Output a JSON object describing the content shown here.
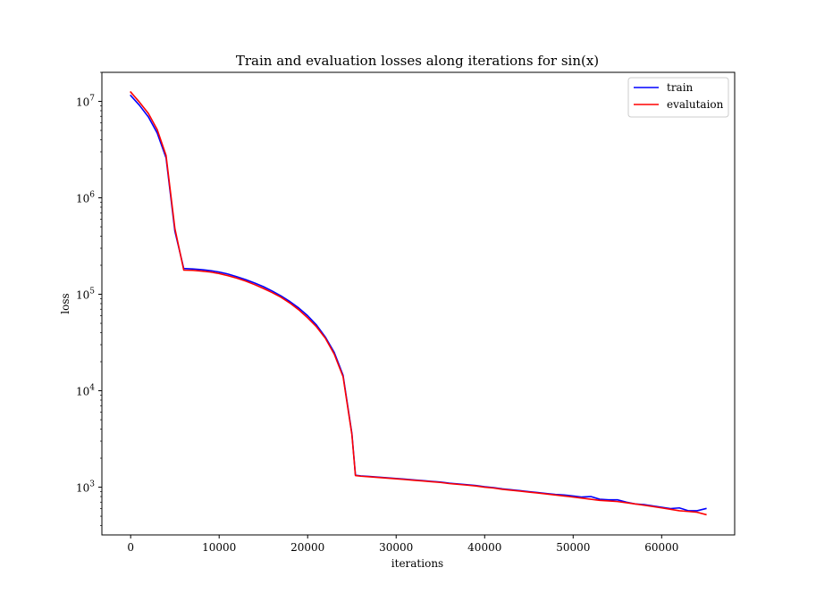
{
  "chart_data": {
    "type": "line",
    "title": "Train and evaluation losses along iterations for sin(x)",
    "xlabel": "iterations",
    "ylabel": "loss",
    "xlim": [
      -3250,
      68250
    ],
    "ylim": [
      320,
      20000000
    ],
    "yscale": "log",
    "grid": false,
    "legend_position": "upper right",
    "x_ticks": [
      0,
      10000,
      20000,
      30000,
      40000,
      50000,
      60000
    ],
    "x_tick_labels": [
      "0",
      "10000",
      "20000",
      "30000",
      "40000",
      "50000",
      "60000"
    ],
    "y_ticks": [
      {
        "value": 1000,
        "base": "10",
        "exp": "3"
      },
      {
        "value": 10000,
        "base": "10",
        "exp": "4"
      },
      {
        "value": 100000,
        "base": "10",
        "exp": "5"
      },
      {
        "value": 1000000,
        "base": "10",
        "exp": "6"
      },
      {
        "value": 10000000,
        "base": "10",
        "exp": "7"
      }
    ],
    "series": [
      {
        "name": "train",
        "color": "#0000ff",
        "points": [
          [
            0,
            11500000
          ],
          [
            1000,
            9100000
          ],
          [
            2000,
            6900000
          ],
          [
            3000,
            4700000
          ],
          [
            4000,
            2600000
          ],
          [
            5000,
            450000
          ],
          [
            6000,
            185000
          ],
          [
            7000,
            183000
          ],
          [
            8000,
            180000
          ],
          [
            9000,
            176000
          ],
          [
            10000,
            170000
          ],
          [
            11000,
            162000
          ],
          [
            12000,
            152000
          ],
          [
            13000,
            142000
          ],
          [
            14000,
            131000
          ],
          [
            15000,
            120000
          ],
          [
            16000,
            108000
          ],
          [
            17000,
            96000
          ],
          [
            18000,
            84000
          ],
          [
            19000,
            72000
          ],
          [
            20000,
            60000
          ],
          [
            21000,
            48000
          ],
          [
            22000,
            36000
          ],
          [
            23000,
            25000
          ],
          [
            24000,
            14500
          ],
          [
            25000,
            3600
          ],
          [
            25400,
            1330
          ],
          [
            26000,
            1310
          ],
          [
            27000,
            1290
          ],
          [
            28000,
            1270
          ],
          [
            29000,
            1250
          ],
          [
            30000,
            1230
          ],
          [
            31000,
            1210
          ],
          [
            32000,
            1190
          ],
          [
            33000,
            1170
          ],
          [
            34000,
            1150
          ],
          [
            35000,
            1130
          ],
          [
            36000,
            1100
          ],
          [
            37000,
            1080
          ],
          [
            38000,
            1060
          ],
          [
            39000,
            1040
          ],
          [
            40000,
            1010
          ],
          [
            41000,
            990
          ],
          [
            42000,
            960
          ],
          [
            43000,
            940
          ],
          [
            44000,
            920
          ],
          [
            45000,
            900
          ],
          [
            46000,
            880
          ],
          [
            47000,
            860
          ],
          [
            48000,
            840
          ],
          [
            49000,
            830
          ],
          [
            50000,
            810
          ],
          [
            51000,
            790
          ],
          [
            52000,
            800
          ],
          [
            53000,
            750
          ],
          [
            54000,
            740
          ],
          [
            55000,
            740
          ],
          [
            56000,
            700
          ],
          [
            57000,
            670
          ],
          [
            58000,
            660
          ],
          [
            59000,
            640
          ],
          [
            60000,
            620
          ],
          [
            61000,
            600
          ],
          [
            62000,
            610
          ],
          [
            63000,
            570
          ],
          [
            64000,
            570
          ],
          [
            65000,
            600
          ]
        ]
      },
      {
        "name": "evalutaion",
        "color": "#ff0000",
        "points": [
          [
            0,
            12500000
          ],
          [
            1000,
            9800000
          ],
          [
            2000,
            7500000
          ],
          [
            3000,
            5100000
          ],
          [
            4000,
            2750000
          ],
          [
            5000,
            480000
          ],
          [
            6000,
            178000
          ],
          [
            7000,
            177000
          ],
          [
            8000,
            174000
          ],
          [
            9000,
            170000
          ],
          [
            10000,
            164000
          ],
          [
            11000,
            156000
          ],
          [
            12000,
            147000
          ],
          [
            13000,
            137000
          ],
          [
            14000,
            126000
          ],
          [
            15000,
            115000
          ],
          [
            16000,
            104000
          ],
          [
            17000,
            93000
          ],
          [
            18000,
            81000
          ],
          [
            19000,
            69000
          ],
          [
            20000,
            57000
          ],
          [
            21000,
            46000
          ],
          [
            22000,
            35000
          ],
          [
            23000,
            24000
          ],
          [
            24000,
            14000
          ],
          [
            25000,
            3500
          ],
          [
            25400,
            1320
          ],
          [
            26000,
            1300
          ],
          [
            27000,
            1280
          ],
          [
            28000,
            1260
          ],
          [
            29000,
            1240
          ],
          [
            30000,
            1220
          ],
          [
            31000,
            1200
          ],
          [
            32000,
            1180
          ],
          [
            33000,
            1160
          ],
          [
            34000,
            1140
          ],
          [
            35000,
            1120
          ],
          [
            36000,
            1090
          ],
          [
            37000,
            1070
          ],
          [
            38000,
            1050
          ],
          [
            39000,
            1030
          ],
          [
            40000,
            1000
          ],
          [
            41000,
            980
          ],
          [
            42000,
            950
          ],
          [
            43000,
            930
          ],
          [
            44000,
            910
          ],
          [
            45000,
            890
          ],
          [
            46000,
            870
          ],
          [
            47000,
            850
          ],
          [
            48000,
            830
          ],
          [
            49000,
            810
          ],
          [
            50000,
            790
          ],
          [
            51000,
            770
          ],
          [
            52000,
            750
          ],
          [
            53000,
            730
          ],
          [
            54000,
            720
          ],
          [
            55000,
            710
          ],
          [
            56000,
            690
          ],
          [
            57000,
            670
          ],
          [
            58000,
            650
          ],
          [
            59000,
            630
          ],
          [
            60000,
            610
          ],
          [
            61000,
            590
          ],
          [
            62000,
            570
          ],
          [
            63000,
            560
          ],
          [
            64000,
            550
          ],
          [
            65000,
            520
          ]
        ]
      }
    ]
  }
}
